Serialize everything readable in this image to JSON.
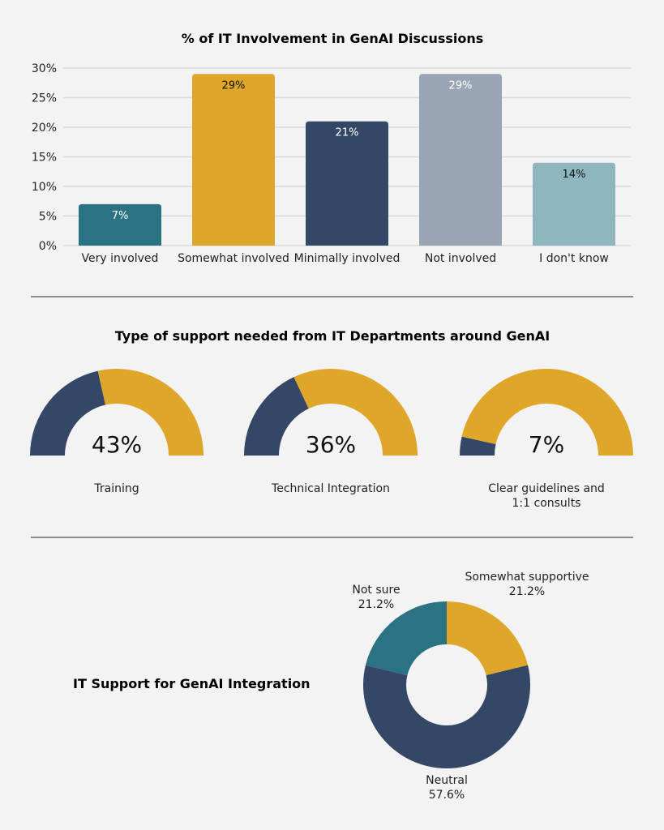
{
  "colors": {
    "teal": "#2b7283",
    "gold": "#dea729",
    "navy": "#344767",
    "gray": "#99a5b4",
    "lightblue": "#8fb6bf",
    "background": "#f3f3f3",
    "divider": "#6b6b6b"
  },
  "chart_data": [
    {
      "type": "bar",
      "title": "% of IT Involvement in GenAI Discussions",
      "categories": [
        "Very involved",
        "Somewhat involved",
        "Minimally involved",
        "Not involved",
        "I don't know"
      ],
      "values": [
        7,
        29,
        21,
        29,
        14
      ],
      "data_labels": [
        "7%",
        "29%",
        "21%",
        "29%",
        "14%"
      ],
      "bar_colors": [
        "#2b7283",
        "#dea729",
        "#344767",
        "#99a5b4",
        "#8fb6bf"
      ],
      "label_colors": [
        "#ffffff",
        "#111111",
        "#ffffff",
        "#ffffff",
        "#111111"
      ],
      "ylim": [
        0,
        30
      ],
      "yticks": [
        "0%",
        "5%",
        "10%",
        "15%",
        "20%",
        "25%",
        "30%"
      ],
      "grid": true,
      "xlabel": "",
      "ylabel": ""
    },
    {
      "type": "gauge",
      "title": "Type of support needed from IT Departments around GenAI",
      "items": [
        {
          "label": "Training",
          "value": 43,
          "display": "43%"
        },
        {
          "label": "Technical Integration",
          "value": 36,
          "display": "36%"
        },
        {
          "label": "Clear guidelines and",
          "label2": "1:1 consults",
          "value": 7,
          "display": "7%"
        }
      ]
    },
    {
      "type": "pie",
      "title": "IT Support for GenAI Integration",
      "donut": true,
      "slices": [
        {
          "label": "Somewhat supportive",
          "value": 21.2,
          "display": "21.2%",
          "color": "#dea729"
        },
        {
          "label": "Neutral",
          "value": 57.6,
          "display": "57.6%",
          "color": "#344767"
        },
        {
          "label": "Not sure",
          "value": 21.2,
          "display": "21.2%",
          "color": "#2b7283"
        }
      ]
    }
  ]
}
